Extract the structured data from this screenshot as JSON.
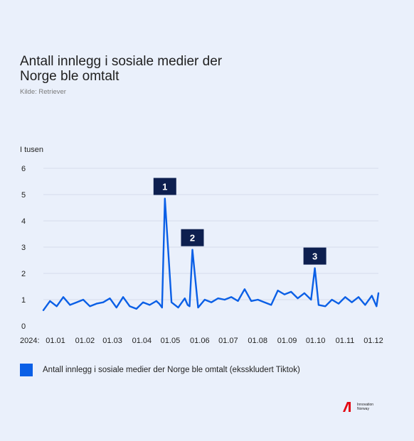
{
  "chart_data": {
    "type": "line",
    "title": "Antall innlegg i sosiale medier der Norge ble omtalt",
    "source": "Kilde: Retriever",
    "ylabel": "I tusen",
    "ylim": [
      0,
      6
    ],
    "yticks": [
      "0",
      "1",
      "2",
      "3",
      "4",
      "5",
      "6"
    ],
    "x_prefix": "2024:",
    "categories": [
      "01.01",
      "01.02",
      "01.03",
      "01.04",
      "01.05",
      "01.06",
      "01.07",
      "01.08",
      "01.09",
      "01.10",
      "01.11",
      "01.12"
    ],
    "grid": true,
    "legend_position": "bottom",
    "colors": {
      "line": "#0a5fe6",
      "annotation": "#0d1f4f",
      "grid": "#cfd6e6"
    },
    "series": [
      {
        "name": "Antall innlegg i sosiale medier der Norge ble omtalt (eksskludert Tiktok)",
        "x": [
          "2024-01-01",
          "2024-01-08",
          "2024-01-15",
          "2024-01-22",
          "2024-01-29",
          "2024-02-05",
          "2024-02-12",
          "2024-02-19",
          "2024-02-26",
          "2024-03-04",
          "2024-03-11",
          "2024-03-18",
          "2024-03-25",
          "2024-04-01",
          "2024-04-08",
          "2024-04-15",
          "2024-04-22",
          "2024-04-29",
          "2024-05-02",
          "2024-05-05",
          "2024-05-08",
          "2024-05-15",
          "2024-05-22",
          "2024-05-29",
          "2024-06-01",
          "2024-06-03",
          "2024-06-06",
          "2024-06-12",
          "2024-06-19",
          "2024-06-26",
          "2024-07-03",
          "2024-07-10",
          "2024-07-17",
          "2024-07-24",
          "2024-07-31",
          "2024-08-07",
          "2024-08-14",
          "2024-08-21",
          "2024-08-28",
          "2024-09-04",
          "2024-09-11",
          "2024-09-18",
          "2024-09-25",
          "2024-10-02",
          "2024-10-09",
          "2024-10-13",
          "2024-10-17",
          "2024-10-24",
          "2024-10-31",
          "2024-11-07",
          "2024-11-14",
          "2024-11-21",
          "2024-11-28",
          "2024-12-05",
          "2024-12-12",
          "2024-12-17",
          "2024-12-19"
        ],
        "y": [
          0.6,
          0.95,
          0.75,
          1.1,
          0.8,
          0.9,
          1.0,
          0.75,
          0.85,
          0.9,
          1.05,
          0.7,
          1.1,
          0.75,
          0.65,
          0.9,
          0.8,
          0.95,
          0.85,
          0.7,
          4.85,
          0.9,
          0.7,
          1.05,
          0.8,
          0.75,
          2.9,
          0.7,
          1.0,
          0.9,
          1.05,
          1.0,
          1.1,
          0.95,
          1.4,
          0.95,
          1.0,
          0.9,
          0.8,
          1.35,
          1.2,
          1.3,
          1.05,
          1.25,
          1.0,
          2.2,
          0.8,
          0.75,
          1.0,
          0.85,
          1.1,
          0.9,
          1.1,
          0.8,
          1.15,
          0.75,
          1.25
        ]
      }
    ],
    "annotations": [
      {
        "label": "1",
        "x": "2024-05-08",
        "y": 4.85
      },
      {
        "label": "2",
        "x": "2024-06-06",
        "y": 2.9
      },
      {
        "label": "3",
        "x": "2024-10-13",
        "y": 2.2
      }
    ]
  },
  "brand": {
    "name_line1": "Innovation",
    "name_line2": "Norway",
    "color": "#e30613"
  }
}
